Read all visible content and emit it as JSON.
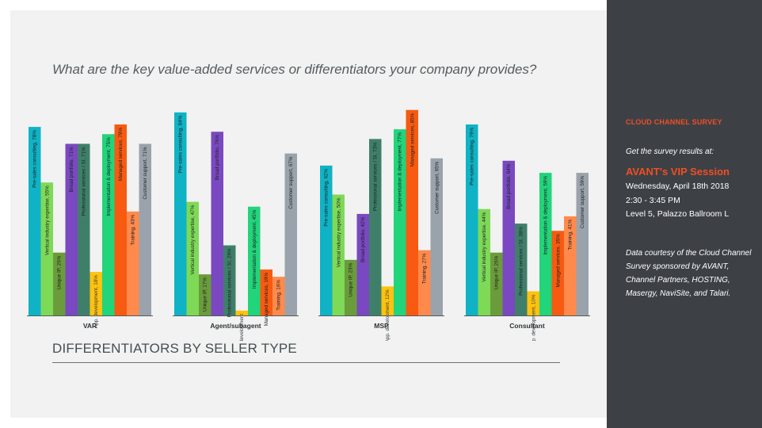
{
  "question": "What are the key value-added services or differentiators your company provides?",
  "heading": "DIFFERENTIATORS BY SELLER TYPE",
  "sidebar": {
    "title": "CLOUD CHANNEL SURVEY",
    "get_results": "Get the survey results at:",
    "event": "AVANT's VIP Session",
    "date": "Wednesday, April 18th 2018",
    "time": "2:30 - 3:45 PM",
    "location": "Level 5, Palazzo Ballroom L",
    "credit": "Data courtesy of the Cloud Channel Survey sponsored by AVANT, Channel Partners, HOSTING, Masergy, NaviSite, and Talari."
  },
  "chart_data": {
    "type": "bar",
    "title": "What are the key value-added services or differentiators your company provides?",
    "ylim": [
      0,
      90
    ],
    "colors": [
      "#0fb3c5",
      "#7ed957",
      "#6b9c3b",
      "#7a48c0",
      "#3f7f6a",
      "#ffc20e",
      "#22d47a",
      "#f75a10",
      "#ff8a4c",
      "#9aa3ab"
    ],
    "groups": [
      {
        "name": "VAR",
        "bars": [
          {
            "value": 78,
            "label": "Pre-sales consulting, 78%"
          },
          {
            "value": 55,
            "label": "Vertical industry expertise, 55%"
          },
          {
            "value": 26,
            "label": "Unique IP, 26%"
          },
          {
            "value": 71,
            "label": "Broad portfolio, 71%"
          },
          {
            "value": 71,
            "label": "Professional services / SI, 71%"
          },
          {
            "value": 18,
            "label": "App. development, 18%"
          },
          {
            "value": 75,
            "label": "Implementation & deployment, 75%"
          },
          {
            "value": 79,
            "label": "Managed services, 79%"
          },
          {
            "value": 43,
            "label": "Training, 43%"
          },
          {
            "value": 71,
            "label": "Customer support, 71%"
          }
        ]
      },
      {
        "name": "Agent/subagent",
        "bars": [
          {
            "value": 84,
            "label": "Pre-sales consulting, 84%"
          },
          {
            "value": 47,
            "label": "Vertical industry expertise, 47%"
          },
          {
            "value": 17,
            "label": "Unique IP, 17%"
          },
          {
            "value": 76,
            "label": "Broad portfolio, 76%"
          },
          {
            "value": 29,
            "label": "Professional services / SI, 29%"
          },
          {
            "value": 2,
            "label": "App. development"
          },
          {
            "value": 45,
            "label": "Implementation & deployment, 45%"
          },
          {
            "value": 19,
            "label": "Managed services, 19%"
          },
          {
            "value": 16,
            "label": "Training, 16%"
          },
          {
            "value": 67,
            "label": "Customer support, 67%"
          }
        ]
      },
      {
        "name": "MSP",
        "bars": [
          {
            "value": 62,
            "label": "Pre-sales consulting, 62%"
          },
          {
            "value": 50,
            "label": "Vertical industry expertise, 50%"
          },
          {
            "value": 23,
            "label": "Unique IP, 23%"
          },
          {
            "value": 42,
            "label": "Broad portfolio, 42%"
          },
          {
            "value": 73,
            "label": "Professional services / SI, 73%"
          },
          {
            "value": 12,
            "label": "App. development, 12%"
          },
          {
            "value": 77,
            "label": "Implementation & deployment, 77%"
          },
          {
            "value": 85,
            "label": "Managed services, 85%"
          },
          {
            "value": 27,
            "label": "Training, 27%"
          },
          {
            "value": 65,
            "label": "Customer support, 65%"
          }
        ]
      },
      {
        "name": "Consultant",
        "bars": [
          {
            "value": 79,
            "label": "Pre-sales consulting, 79%"
          },
          {
            "value": 44,
            "label": "Vertical industry expertise, 44%"
          },
          {
            "value": 26,
            "label": "Unique IP, 26%"
          },
          {
            "value": 64,
            "label": "Broad portfolio, 64%"
          },
          {
            "value": 38,
            "label": "Professional services / SI, 38%"
          },
          {
            "value": 10,
            "label": "App. development, 10%"
          },
          {
            "value": 59,
            "label": "Implementation & deployment, 59%"
          },
          {
            "value": 35,
            "label": "Managed services, 35%"
          },
          {
            "value": 41,
            "label": "Training, 41%"
          },
          {
            "value": 59,
            "label": "Customer support, 59%"
          }
        ]
      }
    ]
  }
}
